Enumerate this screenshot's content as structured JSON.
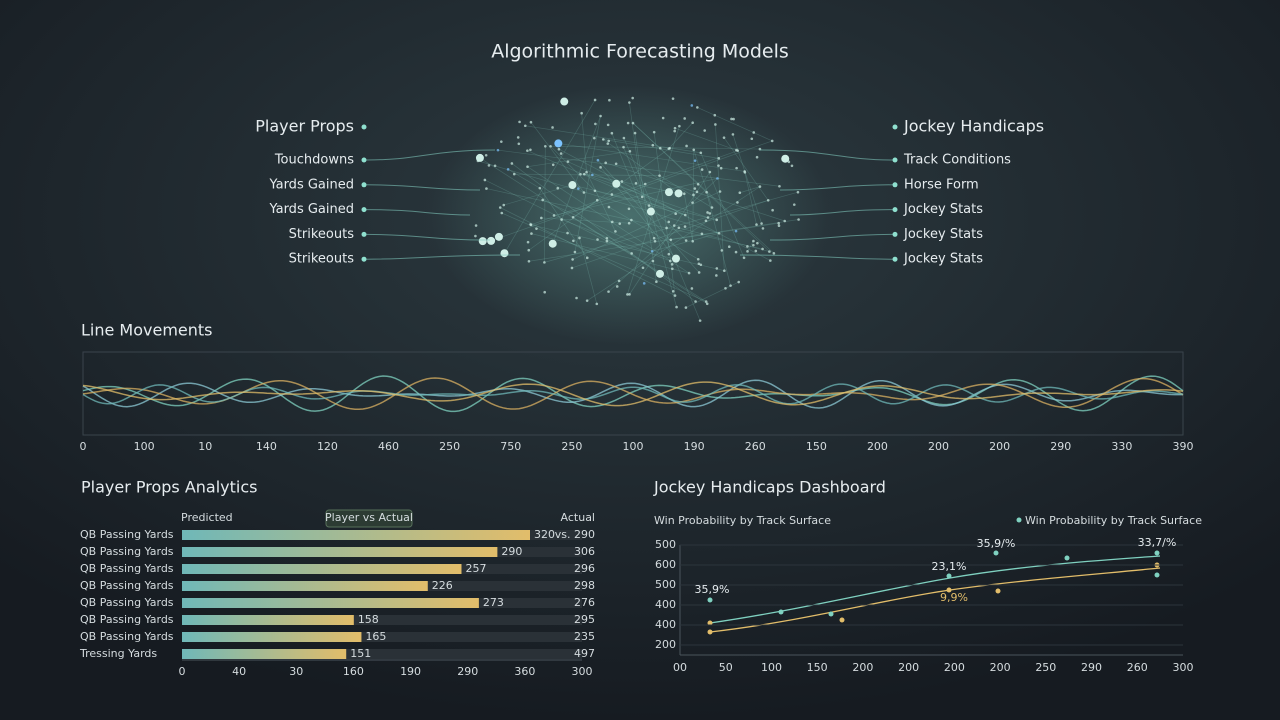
{
  "title": "Algorithmic Forecasting Models",
  "left_tree": {
    "title": "Player Props",
    "items": [
      "Touchdowns",
      "Yards Gained",
      "Yards Gained",
      "Strikeouts",
      "Strikeouts"
    ]
  },
  "right_tree": {
    "title": "Jockey Handicaps",
    "items": [
      "Track Conditions",
      "Horse Form",
      "Jockey Stats",
      "Jockey Stats",
      "Jockey Stats"
    ]
  },
  "line_movements": {
    "title": "Line Movements",
    "axis_labels": [
      "0",
      "100",
      "10",
      "140",
      "120",
      "460",
      "250",
      "750",
      "250",
      "100",
      "190",
      "260",
      "150",
      "200",
      "200",
      "200",
      "290",
      "330",
      "390"
    ]
  },
  "props_analytics": {
    "title": "Player Props Analytics",
    "col_predicted": "Predicted",
    "col_badge": "Player vs Actual",
    "col_actual": "Actual",
    "rows": [
      "QB Passing Yards",
      "QB Passing Yards",
      "QB Passing Yards",
      "QB Passing Yards",
      "QB Passing Yards",
      "QB Passing Yards",
      "QB Passing Yards",
      "Tressing Yards"
    ],
    "values": [
      320,
      290,
      257,
      226,
      273,
      158,
      165,
      151
    ],
    "actual": [
      "vs. 290",
      "306",
      "296",
      "298",
      "276",
      "295",
      "235",
      "497"
    ],
    "axis_labels": [
      "0",
      "40",
      "30",
      "160",
      "190",
      "290",
      "360",
      "300"
    ]
  },
  "jockey_dashboard": {
    "title": "Jockey Handicaps Dashboard",
    "subtitle": "Win Probability by Track Surface",
    "legend": "Win Probability by Track Surface",
    "y_labels": [
      "500",
      "600",
      "500",
      "400",
      "400",
      "200"
    ],
    "x_labels": [
      "00",
      "50",
      "100",
      "150",
      "200",
      "200",
      "200",
      "200",
      "250",
      "290",
      "260",
      "300"
    ],
    "annotations": [
      "35,9%",
      "23,1%",
      "35,9/%",
      "33,7/%",
      "9,9%"
    ]
  }
}
